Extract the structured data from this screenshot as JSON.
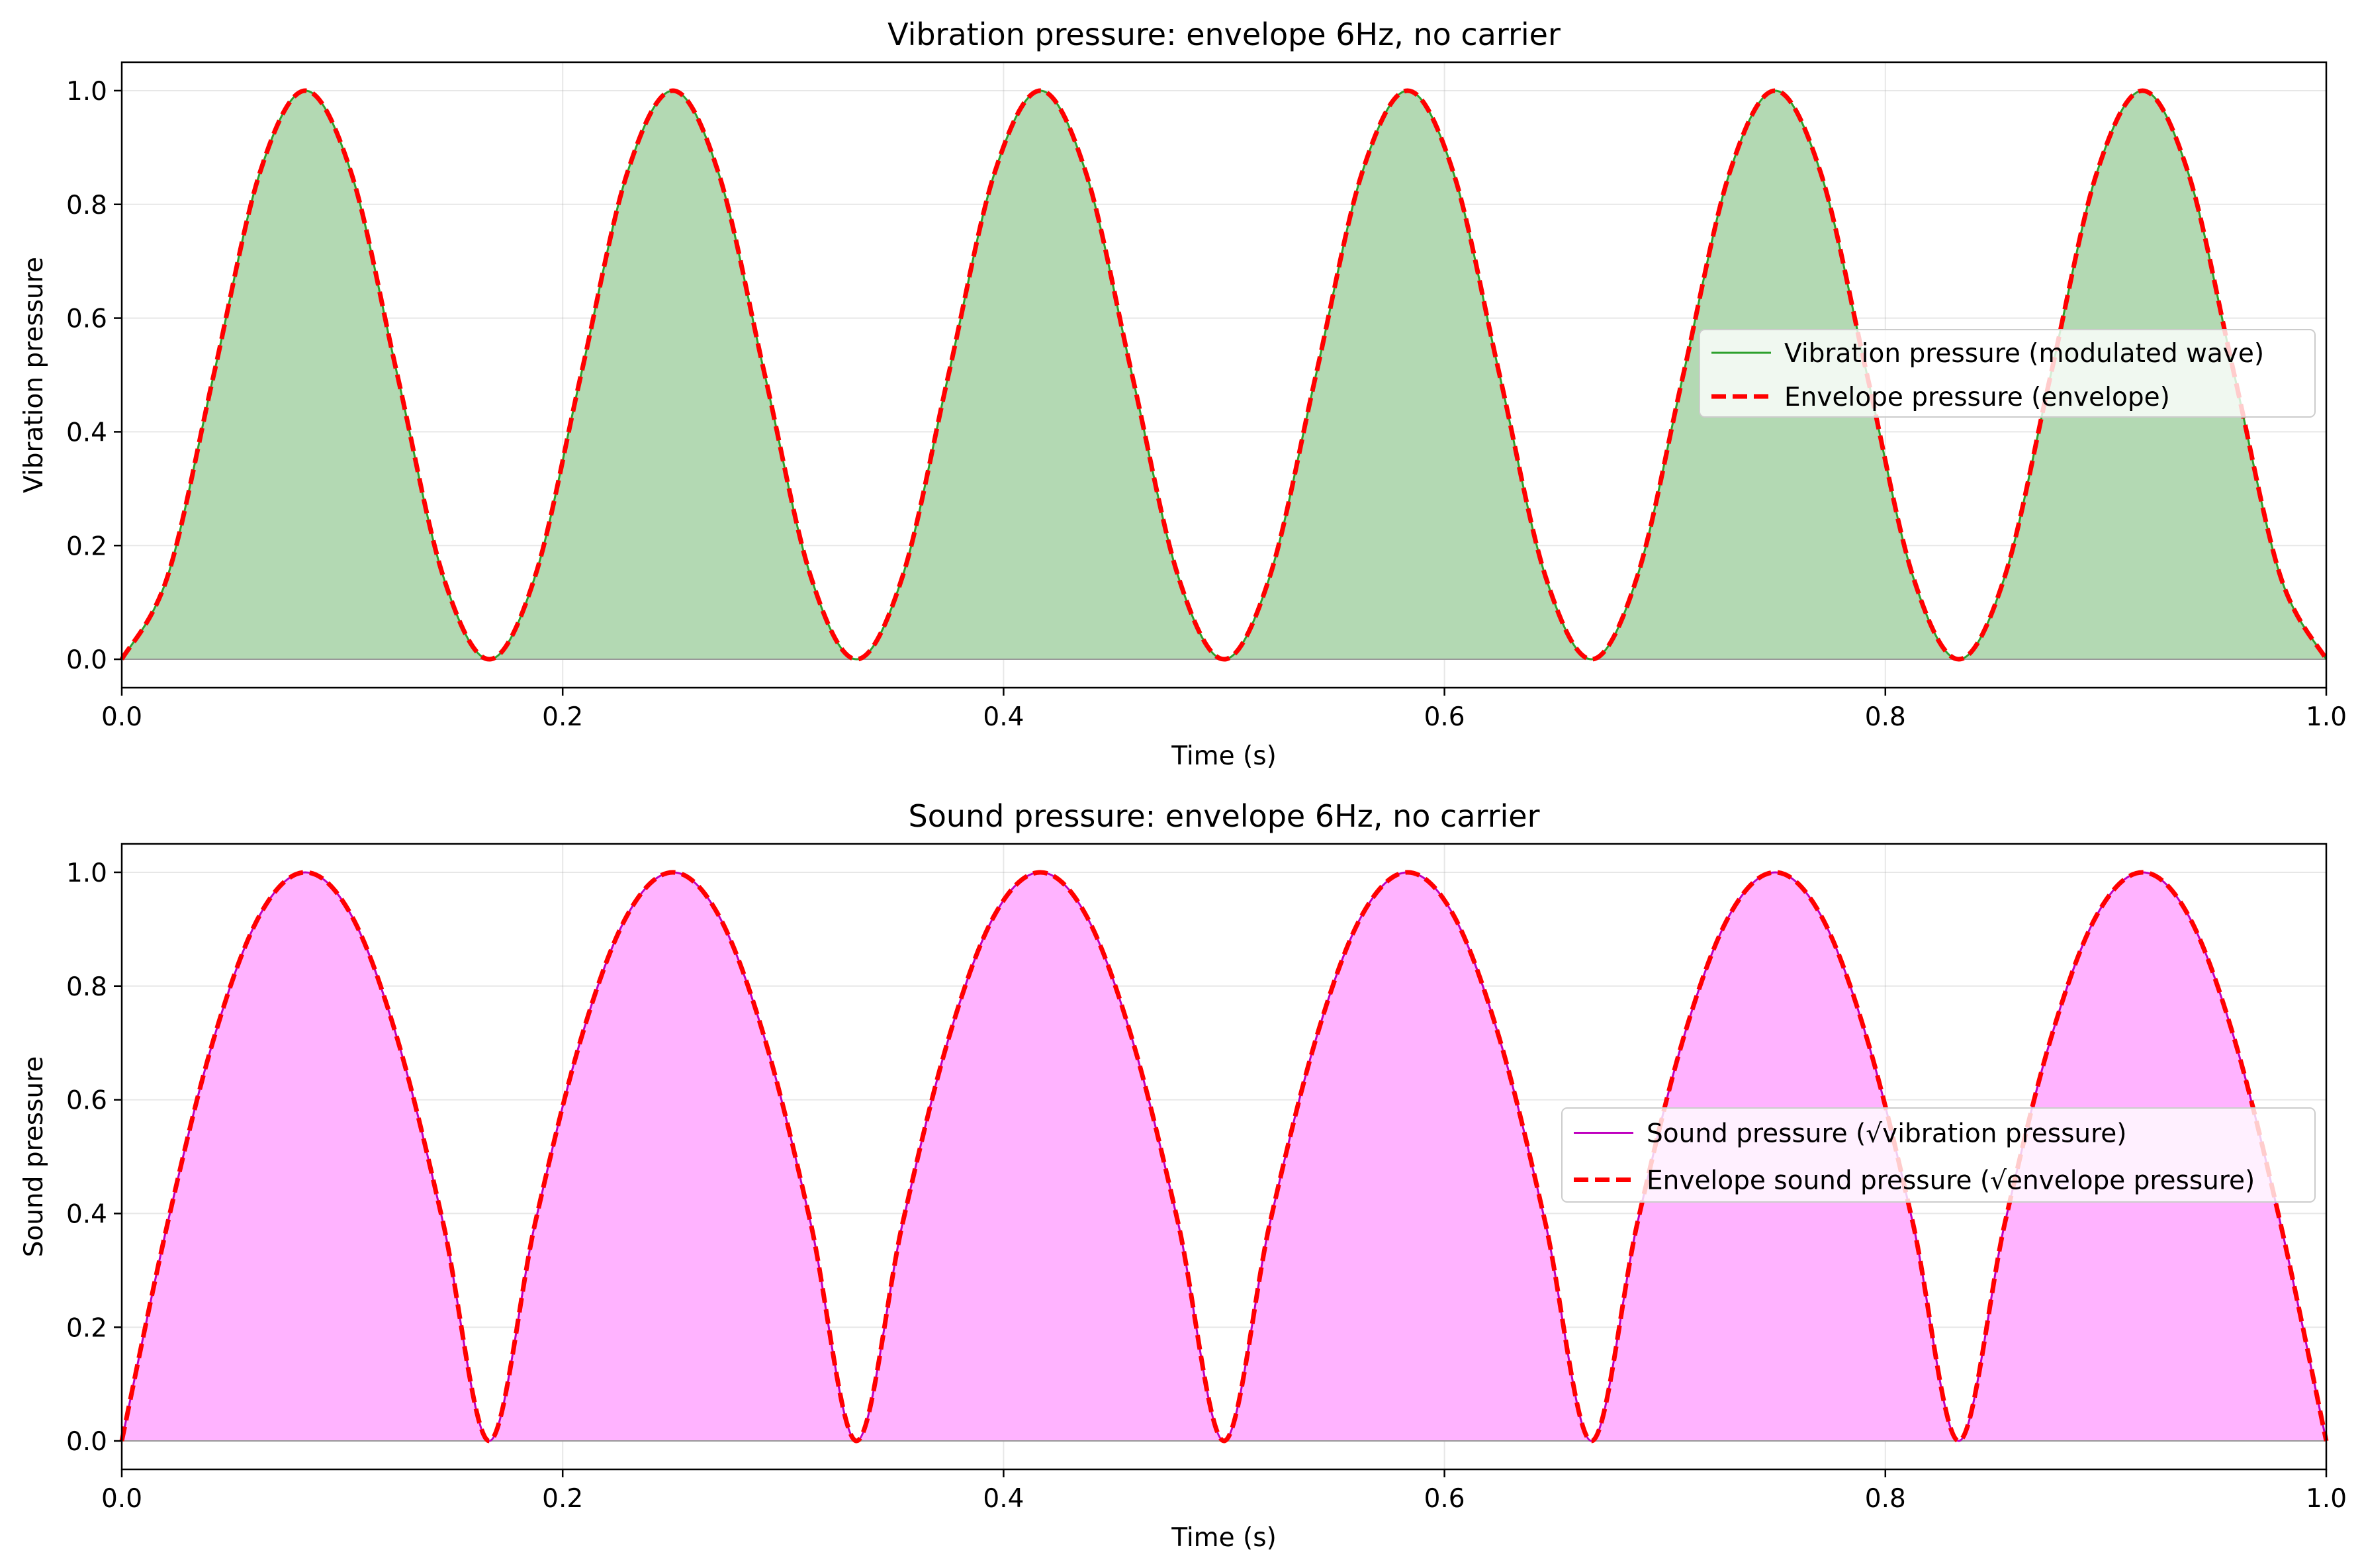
{
  "chart_data": [
    {
      "type": "area",
      "title": "Vibration pressure: envelope 6Hz, no carrier",
      "xlabel": "Time (s)",
      "ylabel": "Vibration pressure",
      "xlim": [
        0.0,
        1.0
      ],
      "ylim": [
        -0.05,
        1.05
      ],
      "xticks": [
        0.0,
        0.2,
        0.4,
        0.6,
        0.8,
        1.0
      ],
      "xtick_labels": [
        "0.0",
        "0.2",
        "0.4",
        "0.6",
        "0.8",
        "1.0"
      ],
      "yticks": [
        0.0,
        0.2,
        0.4,
        0.6,
        0.8,
        1.0
      ],
      "ytick_labels": [
        "0.0",
        "0.2",
        "0.4",
        "0.6",
        "0.8",
        "1.0"
      ],
      "grid": true,
      "legend_position": "center-right",
      "x": [
        0.0,
        0.0208,
        0.0417,
        0.0625,
        0.0833,
        0.1042,
        0.125,
        0.1458,
        0.1667,
        0.1875,
        0.2083,
        0.2292,
        0.25,
        0.2708,
        0.2917,
        0.3125,
        0.3333,
        0.3542,
        0.375,
        0.3958,
        0.4167,
        0.4375,
        0.4583,
        0.4792,
        0.5,
        0.5208,
        0.5417,
        0.5625,
        0.5833,
        0.6042,
        0.625,
        0.6458,
        0.6667,
        0.6875,
        0.7083,
        0.7292,
        0.75,
        0.7708,
        0.7917,
        0.8125,
        0.8333,
        0.8542,
        0.875,
        0.8958,
        0.9167,
        0.9375,
        0.9583,
        0.9792,
        1.0
      ],
      "series": [
        {
          "name": "Vibration pressure (modulated wave)",
          "style": "solid",
          "color": "#2ca02c",
          "fill": "#b3d9b3",
          "values": [
            0.0,
            0.146,
            0.5,
            0.854,
            1.0,
            0.854,
            0.5,
            0.146,
            0.0,
            0.146,
            0.5,
            0.854,
            1.0,
            0.854,
            0.5,
            0.146,
            0.0,
            0.146,
            0.5,
            0.854,
            1.0,
            0.854,
            0.5,
            0.146,
            0.0,
            0.146,
            0.5,
            0.854,
            1.0,
            0.854,
            0.5,
            0.146,
            0.0,
            0.146,
            0.5,
            0.854,
            1.0,
            0.854,
            0.5,
            0.146,
            0.0,
            0.146,
            0.5,
            0.854,
            1.0,
            0.854,
            0.5,
            0.146,
            0.0
          ]
        },
        {
          "name": "Envelope pressure (envelope)",
          "style": "dashed",
          "color": "#ff0000",
          "values": [
            0.0,
            0.146,
            0.5,
            0.854,
            1.0,
            0.854,
            0.5,
            0.146,
            0.0,
            0.146,
            0.5,
            0.854,
            1.0,
            0.854,
            0.5,
            0.146,
            0.0,
            0.146,
            0.5,
            0.854,
            1.0,
            0.854,
            0.5,
            0.146,
            0.0,
            0.146,
            0.5,
            0.854,
            1.0,
            0.854,
            0.5,
            0.146,
            0.0,
            0.146,
            0.5,
            0.854,
            1.0,
            0.854,
            0.5,
            0.146,
            0.0,
            0.146,
            0.5,
            0.854,
            1.0,
            0.854,
            0.5,
            0.146,
            0.0
          ]
        }
      ]
    },
    {
      "type": "area",
      "title": "Sound pressure: envelope 6Hz, no carrier",
      "xlabel": "Time (s)",
      "ylabel": "Sound pressure",
      "xlim": [
        0.0,
        1.0
      ],
      "ylim": [
        -0.05,
        1.05
      ],
      "xticks": [
        0.0,
        0.2,
        0.4,
        0.6,
        0.8,
        1.0
      ],
      "xtick_labels": [
        "0.0",
        "0.2",
        "0.4",
        "0.6",
        "0.8",
        "1.0"
      ],
      "yticks": [
        0.0,
        0.2,
        0.4,
        0.6,
        0.8,
        1.0
      ],
      "ytick_labels": [
        "0.0",
        "0.2",
        "0.4",
        "0.6",
        "0.8",
        "1.0"
      ],
      "grid": true,
      "legend_position": "center-right",
      "x": [
        0.0,
        0.0208,
        0.0417,
        0.0625,
        0.0833,
        0.1042,
        0.125,
        0.1458,
        0.1667,
        0.1875,
        0.2083,
        0.2292,
        0.25,
        0.2708,
        0.2917,
        0.3125,
        0.3333,
        0.3542,
        0.375,
        0.3958,
        0.4167,
        0.4375,
        0.4583,
        0.4792,
        0.5,
        0.5208,
        0.5417,
        0.5625,
        0.5833,
        0.6042,
        0.625,
        0.6458,
        0.6667,
        0.6875,
        0.7083,
        0.7292,
        0.75,
        0.7708,
        0.7917,
        0.8125,
        0.8333,
        0.8542,
        0.875,
        0.8958,
        0.9167,
        0.9375,
        0.9583,
        0.9792,
        1.0
      ],
      "series": [
        {
          "name": "Sound pressure (√vibration pressure)",
          "style": "solid",
          "color": "#bf00bf",
          "fill": "#ffb3ff",
          "values": [
            0.0,
            0.383,
            0.707,
            0.924,
            1.0,
            0.924,
            0.707,
            0.383,
            0.0,
            0.383,
            0.707,
            0.924,
            1.0,
            0.924,
            0.707,
            0.383,
            0.0,
            0.383,
            0.707,
            0.924,
            1.0,
            0.924,
            0.707,
            0.383,
            0.0,
            0.383,
            0.707,
            0.924,
            1.0,
            0.924,
            0.707,
            0.383,
            0.0,
            0.383,
            0.707,
            0.924,
            1.0,
            0.924,
            0.707,
            0.383,
            0.0,
            0.383,
            0.707,
            0.924,
            1.0,
            0.924,
            0.707,
            0.383,
            0.0
          ]
        },
        {
          "name": "Envelope sound pressure (√envelope pressure)",
          "style": "dashed",
          "color": "#ff0000",
          "values": [
            0.0,
            0.383,
            0.707,
            0.924,
            1.0,
            0.924,
            0.707,
            0.383,
            0.0,
            0.383,
            0.707,
            0.924,
            1.0,
            0.924,
            0.707,
            0.383,
            0.0,
            0.383,
            0.707,
            0.924,
            1.0,
            0.924,
            0.707,
            0.383,
            0.0,
            0.383,
            0.707,
            0.924,
            1.0,
            0.924,
            0.707,
            0.383,
            0.0,
            0.383,
            0.707,
            0.924,
            1.0,
            0.924,
            0.707,
            0.383,
            0.0,
            0.383,
            0.707,
            0.924,
            1.0,
            0.924,
            0.707,
            0.383,
            0.0
          ]
        }
      ]
    }
  ]
}
